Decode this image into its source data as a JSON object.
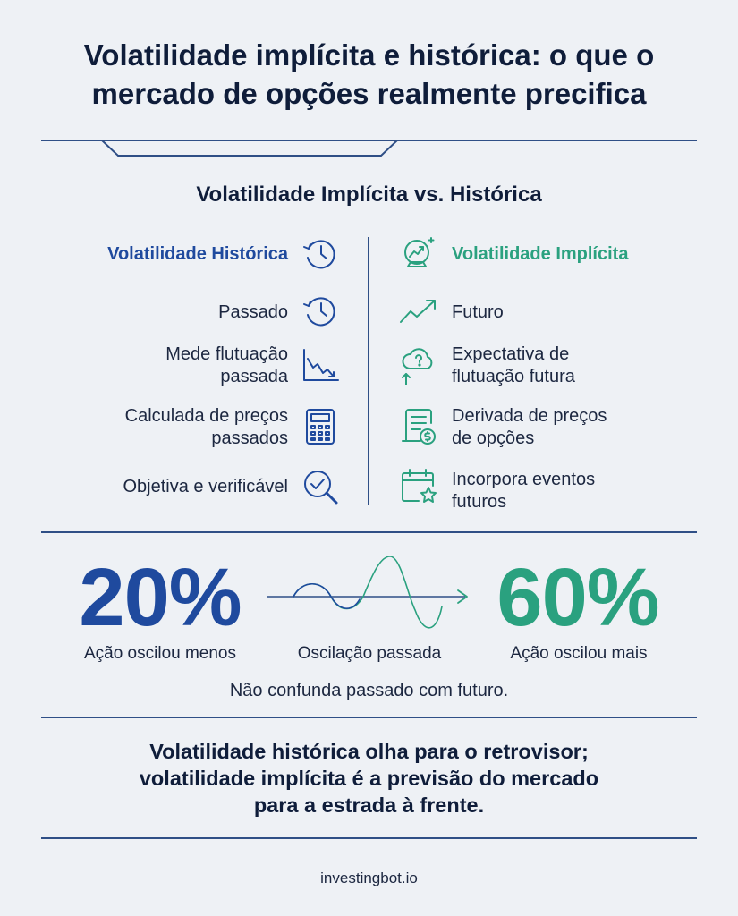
{
  "title": {
    "line1": "Volatilidade implícita e histórica: o que o",
    "line2": "mercado de opções realmente precifica"
  },
  "subtitle": "Volatilidade Implícita vs. Histórica",
  "historical": {
    "heading": "Volatilidade Histórica",
    "items": [
      {
        "line1": "Passado",
        "line2": "",
        "icon": "history-clock-icon"
      },
      {
        "line1": "Mede flutuação",
        "line2": "passada",
        "icon": "declining-chart-icon"
      },
      {
        "line1": "Calculada de preços",
        "line2": "passados",
        "icon": "calculator-icon"
      },
      {
        "line1": "Objetiva e verificável",
        "line2": "",
        "icon": "check-magnifier-icon"
      }
    ]
  },
  "implied": {
    "heading": "Volatilidade Implícita",
    "items": [
      {
        "line1": "Futuro",
        "line2": "",
        "icon": "trend-up-arrow-icon"
      },
      {
        "line1": "Expectativa de",
        "line2": "flutuação futura",
        "icon": "cloud-question-icon"
      },
      {
        "line1": "Derivada de preços",
        "line2": "de opções",
        "icon": "document-dollar-icon"
      },
      {
        "line1": "Incorpora eventos",
        "line2": "futuros",
        "icon": "calendar-star-icon"
      }
    ]
  },
  "comparison": {
    "left_value": "20%",
    "left_caption": "Ação oscilou menos",
    "middle_caption": "Oscilação passada",
    "right_value": "60%",
    "right_caption": "Ação oscilou mais",
    "note": "Não confunda passado com futuro."
  },
  "quote": {
    "line1": "Volatilidade histórica olha para o retrovisor;",
    "line2": "volatilidade implícita é a previsão do mercado",
    "line3": "para a estrada à frente."
  },
  "footer": "investingbot.io",
  "colors": {
    "historical_blue": "#1f4a9e",
    "implied_green": "#2aa17f",
    "navy_text": "#0f1d3a",
    "rule_blue": "#2f4f86",
    "background": "#eef1f5"
  }
}
